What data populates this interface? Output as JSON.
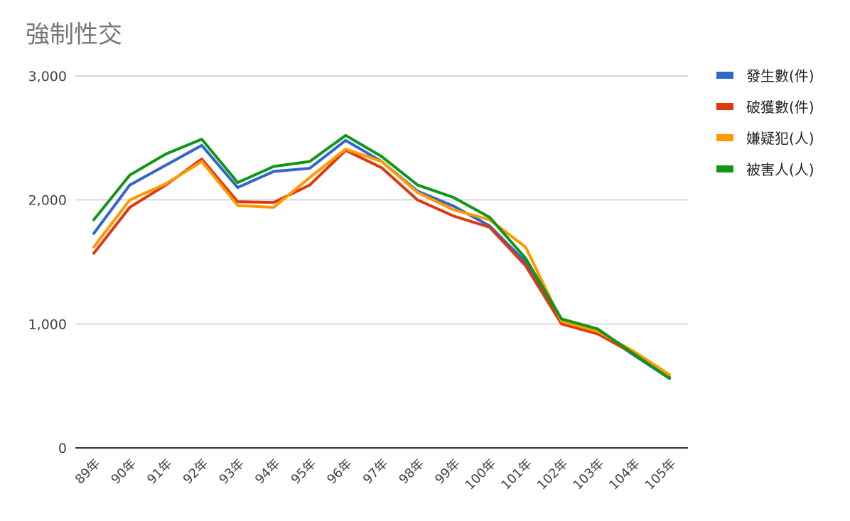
{
  "chart_data": {
    "type": "line",
    "title": "強制性交",
    "categories": [
      "89年",
      "90年",
      "91年",
      "92年",
      "93年",
      "94年",
      "95年",
      "96年",
      "97年",
      "98年",
      "99年",
      "100年",
      "101年",
      "102年",
      "103年",
      "104年",
      "105年"
    ],
    "y_ticks": [
      "0",
      "1,000",
      "2,000",
      "3,000"
    ],
    "ylim": [
      0,
      3000
    ],
    "grid": true,
    "legend_position": "right",
    "series": [
      {
        "name": "發生數(件)",
        "color": "#3366cc",
        "values": [
          1730,
          2120,
          2280,
          2440,
          2100,
          2230,
          2255,
          2480,
          2310,
          2070,
          1950,
          1790,
          1500,
          1030,
          950,
          750,
          560
        ]
      },
      {
        "name": "破獲數(件)",
        "color": "#dc3912",
        "values": [
          1570,
          1940,
          2120,
          2330,
          1985,
          1980,
          2120,
          2400,
          2260,
          2000,
          1870,
          1780,
          1470,
          1000,
          920,
          760,
          570
        ]
      },
      {
        "name": "嫌疑犯(人)",
        "color": "#ff9900",
        "values": [
          1620,
          2000,
          2130,
          2310,
          1955,
          1940,
          2180,
          2410,
          2310,
          2060,
          1920,
          1840,
          1620,
          1020,
          940,
          780,
          590
        ]
      },
      {
        "name": "被害人(人)",
        "color": "#109618",
        "values": [
          1840,
          2200,
          2370,
          2490,
          2140,
          2270,
          2310,
          2520,
          2350,
          2120,
          2020,
          1860,
          1530,
          1040,
          960,
          760,
          560
        ]
      }
    ]
  }
}
